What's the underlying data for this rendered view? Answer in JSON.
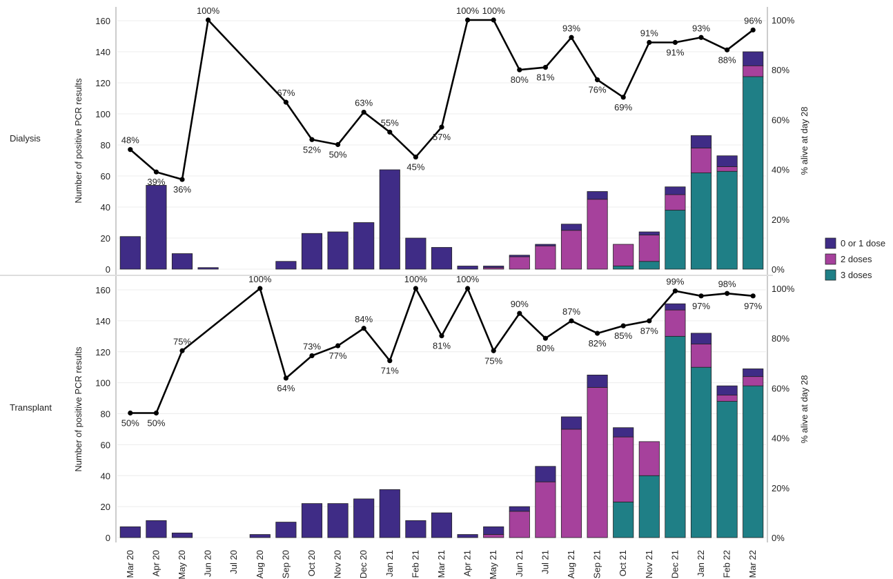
{
  "chart_data": {
    "type": "bar",
    "months": [
      "Mar 20",
      "Apr 20",
      "May 20",
      "Jun 20",
      "Jul 20",
      "Aug 20",
      "Sep 20",
      "Oct 20",
      "Nov 20",
      "Dec 20",
      "Jan 21",
      "Feb 21",
      "Mar 21",
      "Apr 21",
      "May 21",
      "Jun 21",
      "Jul 21",
      "Aug 21",
      "Sep 21",
      "Oct 21",
      "Nov 21",
      "Dec 21",
      "Jan 22",
      "Feb 22",
      "Mar 22"
    ],
    "legend": [
      {
        "name": "0 or 1 dose",
        "color": "#3f2c86"
      },
      {
        "name": "2 doses",
        "color": "#a6419c"
      },
      {
        "name": "3 doses",
        "color": "#1f7f86"
      }
    ],
    "ylabel_left": "Number of positive PCR results",
    "ylabel_right": "% alive at day 28",
    "left_ticks": [
      0,
      20,
      40,
      60,
      80,
      100,
      120,
      140,
      160
    ],
    "right_ticks": [
      "0%",
      "20%",
      "40%",
      "60%",
      "80%",
      "100%"
    ],
    "panels": [
      {
        "label": "Dialysis",
        "ylim": [
          0,
          165
        ],
        "bars": {
          "dose01": [
            21,
            54,
            10,
            1,
            0,
            0,
            5,
            23,
            24,
            30,
            64,
            20,
            14,
            2,
            1,
            1,
            1,
            4,
            5,
            0,
            2,
            5,
            8,
            7,
            9
          ],
          "dose2": [
            0,
            0,
            0,
            0,
            0,
            0,
            0,
            0,
            0,
            0,
            0,
            0,
            0,
            0,
            1,
            8,
            15,
            25,
            45,
            14,
            17,
            10,
            16,
            3,
            7
          ],
          "dose3": [
            0,
            0,
            0,
            0,
            0,
            0,
            0,
            0,
            0,
            0,
            0,
            0,
            0,
            0,
            0,
            0,
            0,
            0,
            0,
            2,
            5,
            38,
            62,
            63,
            124
          ]
        },
        "survival": [
          {
            "month": "Mar 20",
            "value": 48,
            "label": "48%",
            "pos": "above"
          },
          {
            "month": "Apr 20",
            "value": 39,
            "label": "39%",
            "pos": "below"
          },
          {
            "month": "May 20",
            "value": 36,
            "label": "36%",
            "pos": "below"
          },
          {
            "month": "Jun 20",
            "value": 100,
            "label": "100%",
            "pos": "above"
          },
          {
            "month": "Sep 20",
            "value": 67,
            "label": "67%",
            "pos": "above"
          },
          {
            "month": "Oct 20",
            "value": 52,
            "label": "52%",
            "pos": "below"
          },
          {
            "month": "Nov 20",
            "value": 50,
            "label": "50%",
            "pos": "below"
          },
          {
            "month": "Dec 20",
            "value": 63,
            "label": "63%",
            "pos": "above"
          },
          {
            "month": "Jan 21",
            "value": 55,
            "label": "55%",
            "pos": "above"
          },
          {
            "month": "Feb 21",
            "value": 45,
            "label": "45%",
            "pos": "below"
          },
          {
            "month": "Mar 21",
            "value": 57,
            "label": "57%",
            "pos": "below"
          },
          {
            "month": "Apr 21",
            "value": 100,
            "label": "100%",
            "pos": "above"
          },
          {
            "month": "May 21",
            "value": 100,
            "label": "100%",
            "pos": "above"
          },
          {
            "month": "Jun 21",
            "value": 80,
            "label": "80%",
            "pos": "below"
          },
          {
            "month": "Jul 21",
            "value": 81,
            "label": "81%",
            "pos": "below"
          },
          {
            "month": "Aug 21",
            "value": 93,
            "label": "93%",
            "pos": "above"
          },
          {
            "month": "Sep 21",
            "value": 76,
            "label": "76%",
            "pos": "below"
          },
          {
            "month": "Oct 21",
            "value": 69,
            "label": "69%",
            "pos": "below"
          },
          {
            "month": "Nov 21",
            "value": 91,
            "label": "91%",
            "pos": "above"
          },
          {
            "month": "Dec 21",
            "value": 91,
            "label": "91%",
            "pos": "below"
          },
          {
            "month": "Jan 22",
            "value": 93,
            "label": "93%",
            "pos": "above"
          },
          {
            "month": "Feb 22",
            "value": 88,
            "label": "88%",
            "pos": "below"
          },
          {
            "month": "Mar 22",
            "value": 96,
            "label": "96%",
            "pos": "above"
          }
        ]
      },
      {
        "label": "Transplant",
        "ylim": [
          0,
          165
        ],
        "bars": {
          "dose01": [
            7,
            11,
            3,
            0,
            0,
            2,
            10,
            22,
            22,
            25,
            31,
            11,
            16,
            2,
            5,
            3,
            10,
            8,
            8,
            6,
            0,
            4,
            7,
            6,
            5
          ],
          "dose2": [
            0,
            0,
            0,
            0,
            0,
            0,
            0,
            0,
            0,
            0,
            0,
            0,
            0,
            0,
            2,
            17,
            36,
            70,
            97,
            42,
            22,
            17,
            15,
            4,
            6
          ],
          "dose3": [
            0,
            0,
            0,
            0,
            0,
            0,
            0,
            0,
            0,
            0,
            0,
            0,
            0,
            0,
            0,
            0,
            0,
            0,
            0,
            23,
            40,
            130,
            110,
            88,
            98
          ]
        },
        "survival": [
          {
            "month": "Mar 20",
            "value": 50,
            "label": "50%",
            "pos": "below"
          },
          {
            "month": "Apr 20",
            "value": 50,
            "label": "50%",
            "pos": "below"
          },
          {
            "month": "May 20",
            "value": 75,
            "label": "75%",
            "pos": "above"
          },
          {
            "month": "Aug 20",
            "value": 100,
            "label": "100%",
            "pos": "above"
          },
          {
            "month": "Sep 20",
            "value": 64,
            "label": "64%",
            "pos": "below"
          },
          {
            "month": "Oct 20",
            "value": 73,
            "label": "73%",
            "pos": "above"
          },
          {
            "month": "Nov 20",
            "value": 77,
            "label": "77%",
            "pos": "below"
          },
          {
            "month": "Dec 20",
            "value": 84,
            "label": "84%",
            "pos": "above"
          },
          {
            "month": "Jan 21",
            "value": 71,
            "label": "71%",
            "pos": "below"
          },
          {
            "month": "Feb 21",
            "value": 100,
            "label": "100%",
            "pos": "above"
          },
          {
            "month": "Mar 21",
            "value": 81,
            "label": "81%",
            "pos": "below"
          },
          {
            "month": "Apr 21",
            "value": 100,
            "label": "100%",
            "pos": "above"
          },
          {
            "month": "May 21",
            "value": 75,
            "label": "75%",
            "pos": "below"
          },
          {
            "month": "Jun 21",
            "value": 90,
            "label": "90%",
            "pos": "above"
          },
          {
            "month": "Jul 21",
            "value": 80,
            "label": "80%",
            "pos": "below"
          },
          {
            "month": "Aug 21",
            "value": 87,
            "label": "87%",
            "pos": "above"
          },
          {
            "month": "Sep 21",
            "value": 82,
            "label": "82%",
            "pos": "below"
          },
          {
            "month": "Oct 21",
            "value": 85,
            "label": "85%",
            "pos": "below"
          },
          {
            "month": "Nov 21",
            "value": 87,
            "label": "87%",
            "pos": "below"
          },
          {
            "month": "Dec 21",
            "value": 99,
            "label": "99%",
            "pos": "above"
          },
          {
            "month": "Jan 22",
            "value": 97,
            "label": "97%",
            "pos": "below"
          },
          {
            "month": "Feb 22",
            "value": 98,
            "label": "98%",
            "pos": "above"
          },
          {
            "month": "Mar 22",
            "value": 97,
            "label": "97%",
            "pos": "below"
          }
        ]
      }
    ]
  }
}
